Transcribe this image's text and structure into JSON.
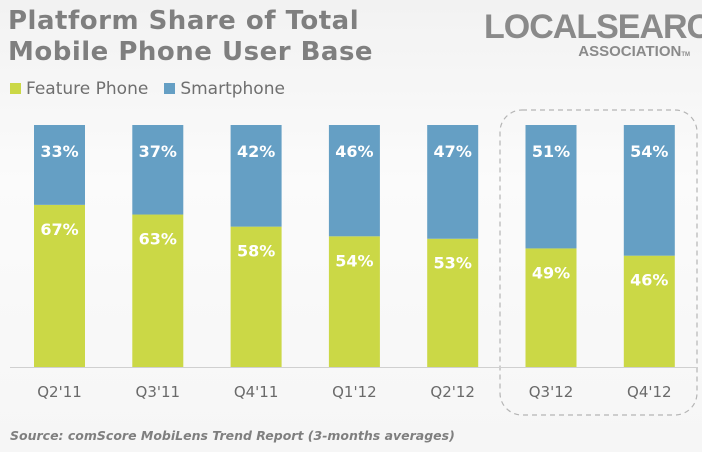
{
  "logo": {
    "line1": "LOCALSEARCH",
    "line2": "ASSOCIATION",
    "tm": "TM"
  },
  "source": "Source: comScore MobiLens Trend Report (3-months averages)",
  "colors": {
    "feature": "#cbd846",
    "smart": "#659fc4"
  },
  "chart_data": {
    "type": "bar",
    "stacked": true,
    "title_lines": [
      "Platform Share of Total",
      "Mobile Phone User Base"
    ],
    "categories": [
      "Q2'11",
      "Q3'11",
      "Q4'11",
      "Q1'12",
      "Q2'12",
      "Q3'12",
      "Q4'12"
    ],
    "series": [
      {
        "name": "Feature Phone",
        "values": [
          67,
          63,
          58,
          54,
          53,
          49,
          46
        ],
        "labels": [
          "67%",
          "63%",
          "58%",
          "54%",
          "53%",
          "49%",
          "46%"
        ]
      },
      {
        "name": "Smartphone",
        "values": [
          33,
          37,
          42,
          46,
          47,
          51,
          54
        ],
        "labels": [
          "33%",
          "37%",
          "42%",
          "46%",
          "47%",
          "51%",
          "54%"
        ]
      }
    ],
    "ylim": [
      0,
      100
    ],
    "legend": "top-left",
    "grid": false,
    "highlighted_categories": [
      "Q3'12",
      "Q4'12"
    ]
  }
}
